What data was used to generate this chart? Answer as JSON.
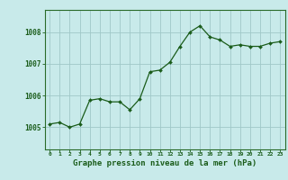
{
  "x": [
    0,
    1,
    2,
    3,
    4,
    5,
    6,
    7,
    8,
    9,
    10,
    11,
    12,
    13,
    14,
    15,
    16,
    17,
    18,
    19,
    20,
    21,
    22,
    23
  ],
  "y": [
    1005.1,
    1005.15,
    1005.0,
    1005.1,
    1005.85,
    1005.9,
    1005.8,
    1005.8,
    1005.55,
    1005.9,
    1006.75,
    1006.8,
    1007.05,
    1007.55,
    1008.0,
    1008.2,
    1007.85,
    1007.75,
    1007.55,
    1007.6,
    1007.55,
    1007.55,
    1007.65,
    1007.7
  ],
  "line_color": "#1a5c1a",
  "marker_color": "#1a5c1a",
  "bg_color": "#c8eaea",
  "grid_color": "#a0c8c8",
  "axis_color": "#2a6b2a",
  "tick_color": "#1a5c1a",
  "xlabel": "Graphe pression niveau de la mer (hPa)",
  "xlabel_fontsize": 6.5,
  "ylabel_ticks": [
    1005,
    1006,
    1007,
    1008
  ],
  "xlim": [
    -0.5,
    23.5
  ],
  "ylim": [
    1004.3,
    1008.7
  ]
}
